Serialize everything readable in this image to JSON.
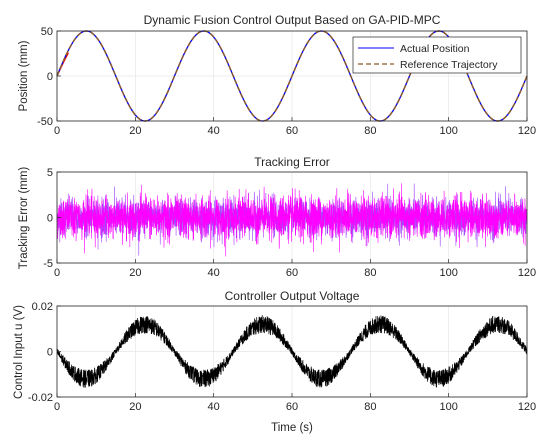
{
  "chart_data": [
    {
      "type": "line",
      "title": "Dynamic Fusion Control Output Based on GA-PID-MPC",
      "xlabel": "",
      "ylabel": "Position (mm)",
      "xlim": [
        0,
        120
      ],
      "ylim": [
        -50,
        50
      ],
      "xticks": [
        0,
        20,
        40,
        60,
        80,
        100,
        120
      ],
      "yticks": [
        -50,
        0,
        50
      ],
      "grid": true,
      "legend_position": "top-right",
      "signal": {
        "kind": "sine",
        "amplitude": 50,
        "period": 30,
        "peak_at": 7.5
      },
      "series": [
        {
          "name": "Actual Position",
          "color": "#0000ff",
          "style": "solid"
        },
        {
          "name": "Reference Trajectory",
          "color": "#8b5a2b",
          "style": "dashed"
        }
      ],
      "accent_colors": [
        "#ff00ff",
        "#ff0000"
      ]
    },
    {
      "type": "line",
      "title": "Tracking Error",
      "xlabel": "",
      "ylabel": "Tracking Error (mm)",
      "xlim": [
        0,
        120
      ],
      "ylim": [
        -5,
        5
      ],
      "xticks": [
        0,
        20,
        40,
        60,
        80,
        100,
        120
      ],
      "yticks": [
        -5,
        0,
        5
      ],
      "grid": true,
      "signal": {
        "kind": "noise",
        "mean": 0,
        "typical_amplitude": 2.5,
        "peak_amplitude": 4.5
      },
      "colors": [
        "#ff00ff",
        "#9933ff"
      ]
    },
    {
      "type": "line",
      "title": "Controller Output Voltage",
      "xlabel": "Time (s)",
      "ylabel": "Control Input u (V)",
      "xlim": [
        0,
        120
      ],
      "ylim": [
        -0.02,
        0.02
      ],
      "xticks": [
        0,
        20,
        40,
        60,
        80,
        100,
        120
      ],
      "yticks": [
        -0.02,
        0,
        0.02
      ],
      "ytick_labels": [
        "-0.02",
        "0",
        "0.02"
      ],
      "grid": true,
      "signal": {
        "kind": "sine+noise",
        "amplitude": 0.012,
        "period": 30,
        "peak_at": 22.5,
        "noise_amplitude": 0.004
      },
      "color": "#000000"
    }
  ]
}
